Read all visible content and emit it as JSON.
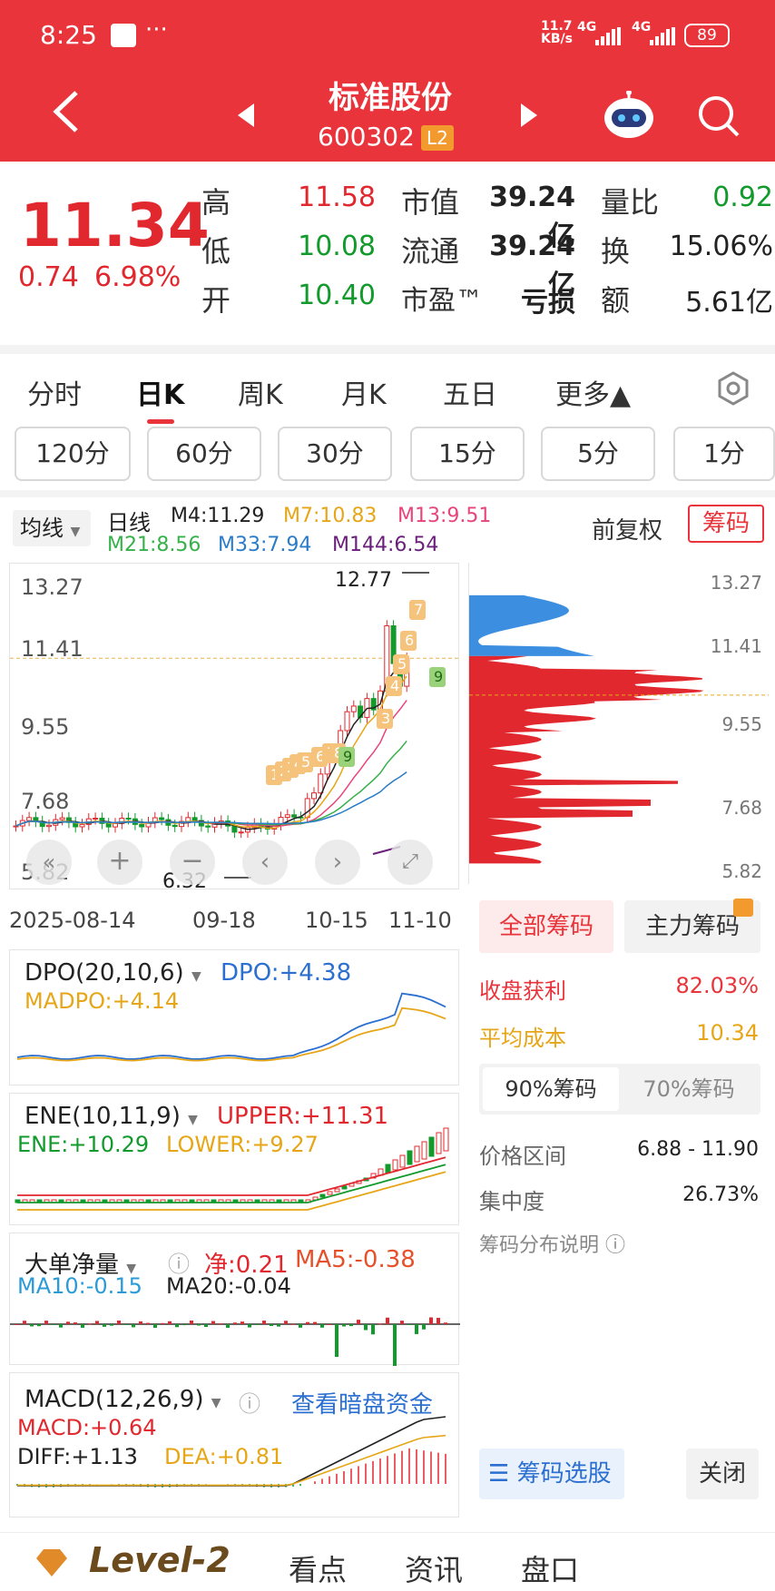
{
  "status_bar": {
    "time": "8:25",
    "speed_top": "11.7",
    "speed_unit": "KB/s",
    "network1": "4G",
    "network2": "4G",
    "battery": "89"
  },
  "header": {
    "title": "标准股份",
    "code": "600302",
    "level_badge": "L2"
  },
  "quote": {
    "price": "11.34",
    "change": "0.74",
    "change_pct": "6.98%",
    "rows": [
      {
        "l1": "高",
        "v1": "11.58",
        "l2": "市值",
        "v2": "39.24亿",
        "l3": "量比",
        "v3": "0.92"
      },
      {
        "l1": "低",
        "v1": "10.08",
        "l2": "流通",
        "v2": "39.24亿",
        "l3": "换",
        "v3": "15.06%"
      },
      {
        "l1": "开",
        "v1": "10.40",
        "l2": "市盈™",
        "v2": "亏损",
        "l3": "额",
        "v3": "5.61亿"
      }
    ]
  },
  "period_tabs": [
    "分时",
    "日K",
    "周K",
    "月K",
    "五日",
    "更多▲"
  ],
  "minute_buttons": [
    "120分",
    "60分",
    "30分",
    "15分",
    "5分",
    "1分"
  ],
  "kline": {
    "ma_selector": "均线",
    "period": "日线",
    "m4": "M4:11.29",
    "m7": "M7:10.83",
    "m13": "M13:9.51",
    "m21": "M21:8.56",
    "m33": "M33:7.94",
    "m144": "M144:6.54",
    "adjust": "前复权",
    "chips_btn": "筹码",
    "y_ticks": [
      "13.27",
      "11.41",
      "9.55",
      "7.68",
      "5.82"
    ],
    "high_mark": "12.77",
    "low_mark": "6.32",
    "x_dates": [
      "2025-08-14",
      "09-18",
      "10-15",
      "11-10"
    ],
    "count_labels": [
      "1",
      "2",
      "3",
      "4",
      "5",
      "6",
      "7",
      "8",
      "9"
    ]
  },
  "chips": {
    "y_ticks": [
      "13.27",
      "11.41",
      "9.55",
      "7.68",
      "5.82"
    ],
    "tab_all": "全部筹码",
    "tab_main": "主力筹码",
    "profit_label": "收盘获利",
    "profit_val": "82.03%",
    "avg_label": "平均成本",
    "avg_val": "10.34",
    "pct90": "90%筹码",
    "pct70": "70%筹码",
    "range_label": "价格区间",
    "range_val": "6.88 - 11.90",
    "conc_label": "集中度",
    "conc_val": "26.73%",
    "explain": "筹码分布说明",
    "select_btn": "筹码选股",
    "close_btn": "关闭"
  },
  "dpo": {
    "title": "DPO(20,10,6)",
    "dpo": "DPO:+4.38",
    "madpo": "MADPO:+4.14"
  },
  "ene": {
    "title": "ENE(10,11,9)",
    "upper": "UPPER:+11.31",
    "ene": "ENE:+10.29",
    "lower": "LOWER:+9.27"
  },
  "bigorder": {
    "title": "大单净量",
    "net": "净:0.21",
    "ma5": "MA5:-0.38",
    "ma10": "MA10:-0.15",
    "ma20": "MA20:-0.04"
  },
  "macd": {
    "title": "MACD(12,26,9)",
    "link": "查看暗盘资金",
    "macd": "MACD:+0.64",
    "diff": "DIFF:+1.13",
    "dea": "DEA:+0.81"
  },
  "bottom_nav": {
    "level2": "Level-2",
    "items": [
      "看点",
      "资讯",
      "盘口"
    ]
  }
}
